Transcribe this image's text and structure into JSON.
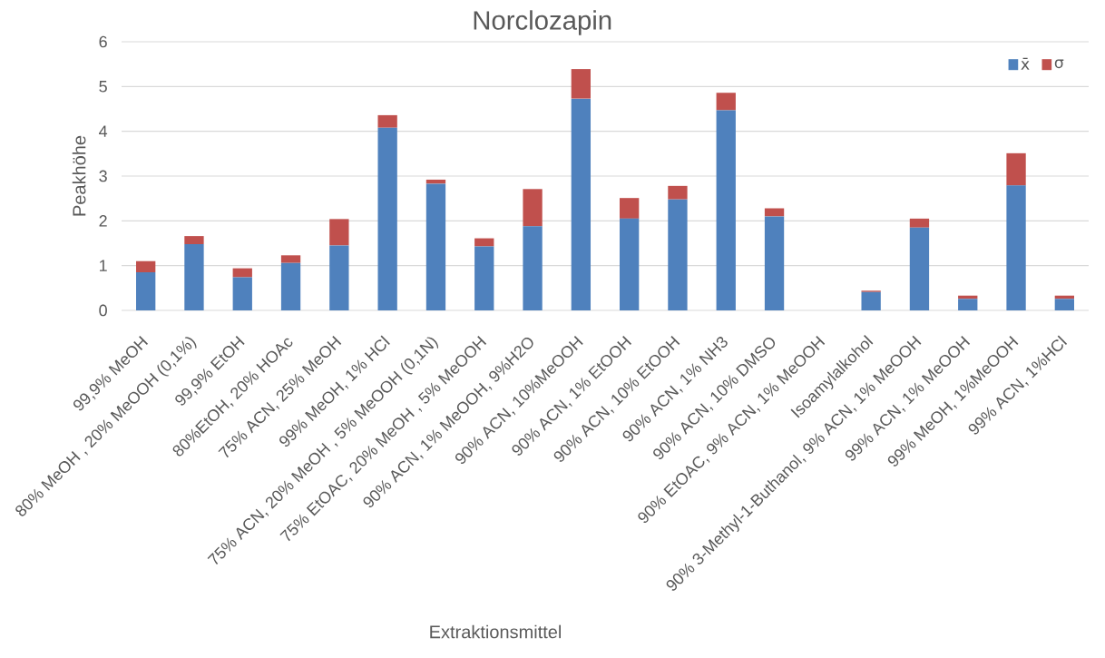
{
  "chart_data": {
    "type": "bar",
    "stacked": true,
    "title": "Norclozapin",
    "xlabel": "Extraktionsmittel",
    "ylabel": "Peakhöhe",
    "categories": [
      "99,9% MeOH",
      "80% MeOH , 20% MeOOH (0,1%)",
      "99,9% EtOH",
      "80%EtOH, 20% HOAc",
      "75% ACN, 25% MeOH",
      "99% MeOH, 1% HCl",
      "75% ACN, 20% MeOH , 5% MeOOH (0,1N)",
      "75% EtOAC, 20% MeOH , 5% MeOOH",
      "90% ACN, 1% MeOOH, 9%H2O",
      "90% ACN, 10%MeOOH",
      "90% ACN, 1% EtOOH",
      "90% ACN, 10% EtOOH",
      "90% ACN, 1% NH3",
      "90% ACN, 10% DMSO",
      "90% EtOAC, 9% ACN, 1% MeOOH",
      "Isoamylalkohol",
      "90% 3-Methyl-1-Buthanol, 9% ACN, 1% MeOOH",
      "99% ACN, 1% MeOOH",
      "99% MeOH, 1%MeOOH",
      "99% ACN, 1%HCl"
    ],
    "series": [
      {
        "name": "x̄",
        "color": "#4f81bd",
        "values": [
          0.85,
          1.48,
          0.74,
          1.06,
          1.45,
          4.08,
          2.83,
          1.43,
          1.88,
          4.73,
          2.05,
          2.48,
          4.47,
          2.1,
          null,
          0.41,
          1.85,
          0.26,
          2.79,
          0.26
        ]
      },
      {
        "name": "σ",
        "color": "#c0504d",
        "values": [
          0.25,
          0.18,
          0.2,
          0.17,
          0.59,
          0.28,
          0.09,
          0.18,
          0.83,
          0.66,
          0.46,
          0.3,
          0.39,
          0.18,
          null,
          0.03,
          0.2,
          0.07,
          0.72,
          0.07
        ]
      }
    ],
    "ylim": [
      0,
      6
    ],
    "yticks": [
      0,
      1,
      2,
      3,
      4,
      5,
      6
    ],
    "grid": "y",
    "legend": "top right"
  }
}
